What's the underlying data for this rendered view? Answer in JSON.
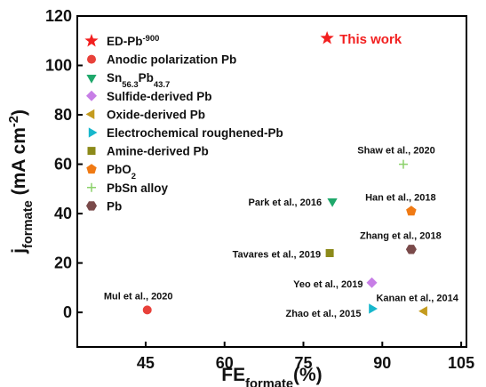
{
  "chart_data": {
    "type": "scatter",
    "x_label": "FEformate(%)",
    "y_label": "jformate (mA cm-2)",
    "xlim": [
      32,
      106
    ],
    "xticks": [
      45,
      60,
      75,
      90,
      105
    ],
    "ylim": [
      -14,
      120
    ],
    "yticks": [
      0,
      20,
      40,
      60,
      80,
      100,
      120
    ],
    "legend": "upper left",
    "series": [
      {
        "name": "ED-Pb-900",
        "color": "#f21f1f",
        "marker": "star",
        "x": [
          79.5
        ],
        "values": [
          111
        ],
        "labels": [
          "This work"
        ]
      },
      {
        "name": "Anodic polarization Pb",
        "color": "#e8413a",
        "marker": "circle",
        "x": [
          45.3
        ],
        "values": [
          1
        ],
        "labels": [
          "Mul et al., 2020"
        ]
      },
      {
        "name": "Sn56.3Pb43.7",
        "color": "#1fa86b",
        "marker": "triangle-down",
        "x": [
          80.5
        ],
        "values": [
          45
        ],
        "labels": [
          "Park et al., 2016"
        ]
      },
      {
        "name": "Sulfide-derived Pb",
        "color": "#c77ee6",
        "marker": "diamond",
        "x": [
          88
        ],
        "values": [
          12
        ],
        "labels": [
          "Yeo et al., 2019"
        ]
      },
      {
        "name": "Oxide-derived Pb",
        "color": "#c49b1e",
        "marker": "triangle-left",
        "x": [
          98
        ],
        "values": [
          0.5
        ],
        "labels": [
          "Kanan et al., 2014"
        ]
      },
      {
        "name": "Electrochemical roughened-Pb",
        "color": "#17b7cc",
        "marker": "triangle-right",
        "x": [
          88
        ],
        "values": [
          1.5
        ],
        "labels": [
          "Zhao et al., 2015"
        ]
      },
      {
        "name": "Amine-derived Pb",
        "color": "#8c8a1a",
        "marker": "square",
        "x": [
          80
        ],
        "values": [
          24
        ],
        "labels": [
          "Tavares et al., 2019"
        ]
      },
      {
        "name": "PbO2",
        "color": "#f07a14",
        "marker": "pentagon",
        "x": [
          95.5
        ],
        "values": [
          41
        ],
        "labels": [
          "Han et al., 2018"
        ]
      },
      {
        "name": "PbSn alloy",
        "color": "#8bd16a",
        "marker": "plus",
        "x": [
          94
        ],
        "values": [
          60
        ],
        "labels": [
          "Shaw et al., 2020"
        ]
      },
      {
        "name": "Pb",
        "color": "#7a4a4a",
        "marker": "hexagon",
        "x": [
          95.5
        ],
        "values": [
          25.5
        ],
        "labels": [
          "Zhang et al., 2018"
        ]
      }
    ]
  }
}
